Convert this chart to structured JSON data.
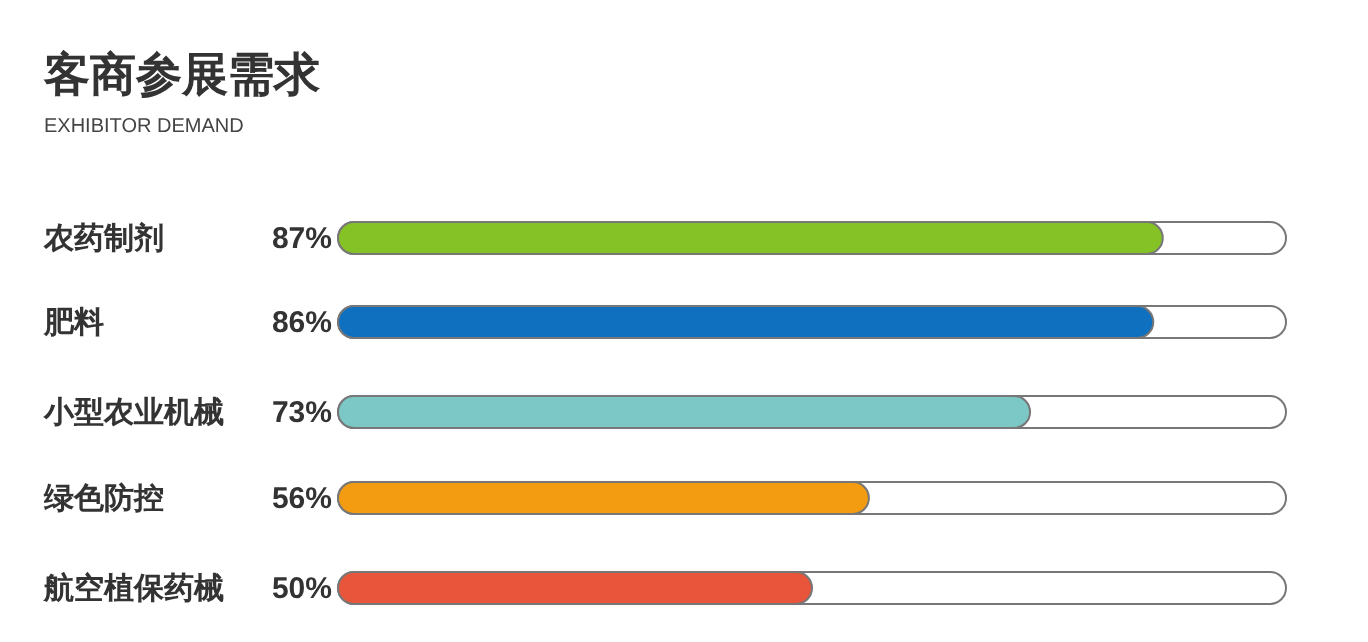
{
  "chart_data": {
    "type": "bar",
    "orientation": "horizontal",
    "title": "客商参展需求",
    "subtitle": "EXHIBITOR DEMAND",
    "categories": [
      "农药制剂",
      "肥料",
      "小型农业机械",
      "绿色防控",
      "航空植保药械"
    ],
    "values": [
      87,
      86,
      73,
      56,
      50
    ],
    "colors": [
      "#84c225",
      "#0f70bf",
      "#7cc8c6",
      "#f39c12",
      "#e8553a"
    ],
    "value_labels": [
      "87%",
      "86%",
      "73%",
      "56%",
      "50%"
    ],
    "xlim": [
      0,
      100
    ]
  }
}
